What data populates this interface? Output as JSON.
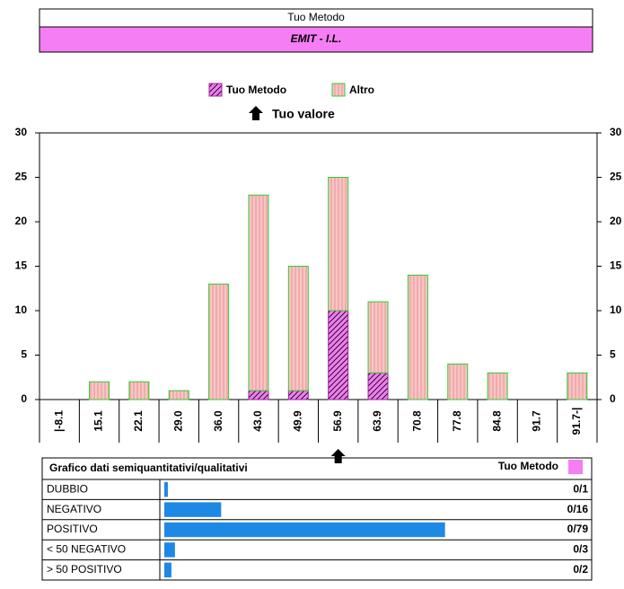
{
  "header": {
    "title": "Tuo Metodo",
    "subtitle": "EMIT - I.L."
  },
  "chart_data": {
    "type": "stacked_bar",
    "categories": [
      "|-8.1",
      "15.1",
      "22.1",
      "29.0",
      "36.0",
      "43.0",
      "49.9",
      "56.9",
      "63.9",
      "70.8",
      "77.8",
      "84.8",
      "91.7",
      "91.7-|"
    ],
    "series": [
      {
        "name": "Tuo Metodo",
        "color": "#f07cf0",
        "values": [
          0,
          0,
          0,
          0,
          0,
          1,
          1,
          10,
          3,
          0,
          0,
          0,
          0,
          0
        ]
      },
      {
        "name": "Altro",
        "color": "#f9c4c4",
        "values": [
          0,
          2,
          2,
          1,
          13,
          22,
          14,
          15,
          8,
          14,
          4,
          3,
          0,
          3
        ]
      }
    ],
    "ylim": [
      0,
      30
    ],
    "yticks": [
      0,
      5,
      10,
      15,
      20,
      25,
      30
    ],
    "y2lim": [
      0,
      30
    ],
    "y2ticks": [
      0,
      5,
      10,
      15,
      20,
      25,
      30
    ],
    "marker_label": "Tuo valore",
    "marker_category": "56.9",
    "grid": false
  },
  "table": {
    "title": "Grafico dati semiquantitativi/qualitativi",
    "method": "Tuo Metodo",
    "bar_xlim": [
      0,
      118
    ],
    "rows": [
      {
        "label": "DUBBIO",
        "count": 1,
        "value_label": "0/1"
      },
      {
        "label": "NEGATIVO",
        "count": 16,
        "value_label": "0/16"
      },
      {
        "label": "POSITIVO",
        "count": 79,
        "value_label": "0/79"
      },
      {
        "label": "< 50 NEGATIVO",
        "count": 3,
        "value_label": "0/3"
      },
      {
        "label": "> 50 POSITIVO",
        "count": 2,
        "value_label": "0/2"
      }
    ]
  }
}
